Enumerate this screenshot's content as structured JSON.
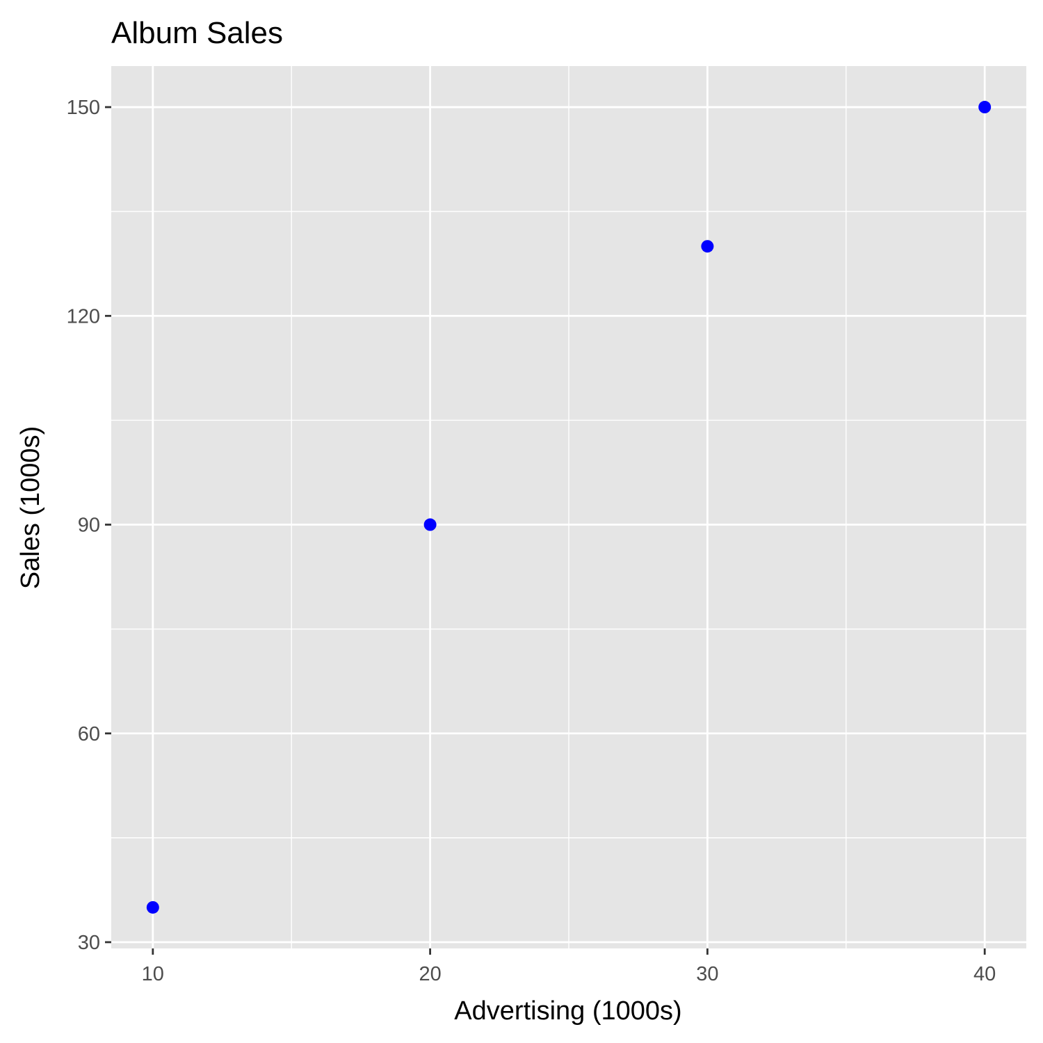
{
  "chart_data": {
    "type": "scatter",
    "title": "Album Sales",
    "xlabel": "Advertising (1000s)",
    "ylabel": "Sales (1000s)",
    "x": [
      10,
      20,
      30,
      40
    ],
    "y": [
      35,
      90,
      130,
      150
    ],
    "xlim": [
      8.5,
      41.5
    ],
    "ylim": [
      29.1,
      155.9
    ],
    "x_ticks": [
      10,
      20,
      30,
      40
    ],
    "y_ticks": [
      30,
      60,
      90,
      120,
      150
    ],
    "x_tick_labels": [
      "10",
      "20",
      "30",
      "40"
    ],
    "y_tick_labels": [
      "30",
      "60",
      "90",
      "120",
      "150"
    ],
    "grid": true,
    "legend": "none"
  },
  "colors": {
    "panel_background": "#e5e5e5",
    "grid": "#ffffff",
    "point": "#0000ff",
    "tick_text": "#4d4d4d",
    "tick_mark": "#333333",
    "text": "#000000"
  }
}
